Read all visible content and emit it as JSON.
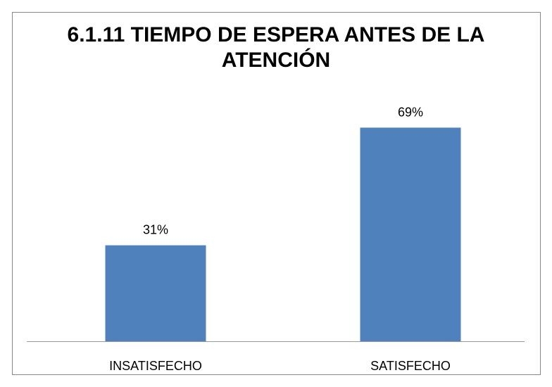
{
  "chart_data": {
    "type": "bar",
    "title": "6.1.11 TIEMPO DE ESPERA ANTES DE LA ATENCIÓN",
    "categories": [
      "INSATISFECHO",
      "SATISFECHO"
    ],
    "values": [
      31,
      69
    ],
    "value_labels": [
      "31%",
      "69%"
    ],
    "color": "#4f81bd",
    "ylim": [
      0,
      80
    ]
  }
}
